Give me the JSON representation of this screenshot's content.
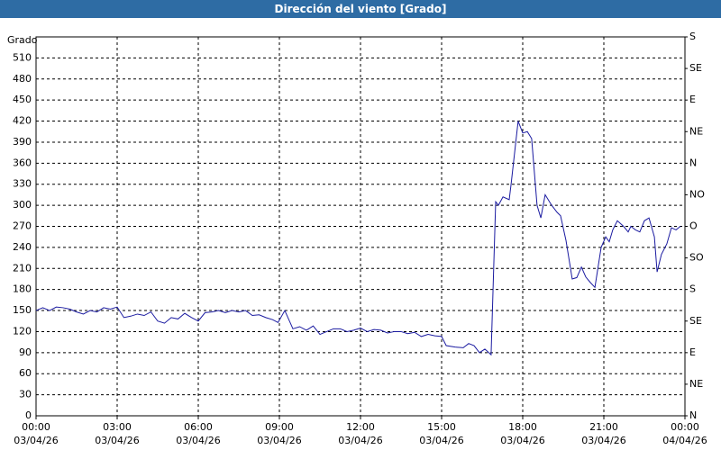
{
  "chart_data": {
    "type": "line",
    "title": "Dirección del viento [Grado]",
    "y_label": "Grado",
    "xlim": [
      0,
      24
    ],
    "xticks": [
      {
        "value": 0,
        "label": "00:00\n03/04/26"
      },
      {
        "value": 3,
        "label": "03:00\n03/04/26"
      },
      {
        "value": 6,
        "label": "06:00\n03/04/26"
      },
      {
        "value": 9,
        "label": "09:00\n03/04/26"
      },
      {
        "value": 12,
        "label": "12:00\n03/04/26"
      },
      {
        "value": 15,
        "label": "15:00\n03/04/26"
      },
      {
        "value": 18,
        "label": "18:00\n03/04/26"
      },
      {
        "value": 21,
        "label": "21:00\n03/04/26"
      },
      {
        "value": 24,
        "label": "00:00\n04/04/26"
      }
    ],
    "ylim": [
      0,
      540
    ],
    "yticks": [
      0,
      30,
      60,
      90,
      120,
      150,
      180,
      210,
      240,
      270,
      300,
      330,
      360,
      390,
      420,
      450,
      480,
      510
    ],
    "y2lim": [
      0,
      540
    ],
    "y2ticks": [
      {
        "value": 0,
        "label": "N"
      },
      {
        "value": 45,
        "label": "NE"
      },
      {
        "value": 90,
        "label": "E"
      },
      {
        "value": 135,
        "label": "SE"
      },
      {
        "value": 180,
        "label": "S"
      },
      {
        "value": 225,
        "label": "SO"
      },
      {
        "value": 270,
        "label": "O"
      },
      {
        "value": 315,
        "label": "NO"
      },
      {
        "value": 360,
        "label": "N"
      },
      {
        "value": 405,
        "label": "NE"
      },
      {
        "value": 450,
        "label": "E"
      },
      {
        "value": 495,
        "label": "SE"
      },
      {
        "value": 540,
        "label": "S"
      }
    ],
    "grid": true,
    "x": [
      0,
      0.25,
      0.5,
      0.75,
      1,
      1.25,
      1.5,
      1.75,
      2,
      2.25,
      2.5,
      2.75,
      3,
      3.25,
      3.5,
      3.75,
      4,
      4.25,
      4.5,
      4.75,
      5,
      5.25,
      5.5,
      5.75,
      6,
      6.25,
      6.5,
      6.75,
      7,
      7.25,
      7.5,
      7.75,
      8,
      8.25,
      8.5,
      8.75,
      8.95,
      9.2,
      9.5,
      9.75,
      10,
      10.25,
      10.5,
      10.75,
      11,
      11.25,
      11.5,
      11.75,
      12,
      12.25,
      12.5,
      12.75,
      13,
      13.25,
      13.5,
      13.75,
      14,
      14.25,
      14.5,
      14.75,
      15,
      15.17,
      15.5,
      15.8,
      16,
      16.2,
      16.4,
      16.6,
      16.83,
      17,
      17.1,
      17.27,
      17.5,
      17.57,
      17.83,
      18,
      18.17,
      18.33,
      18.53,
      18.67,
      18.83,
      19.07,
      19.27,
      19.4,
      19.6,
      19.83,
      20,
      20.17,
      20.33,
      20.5,
      20.67,
      20.9,
      21.07,
      21.2,
      21.33,
      21.5,
      21.73,
      21.9,
      22,
      22.17,
      22.33,
      22.5,
      22.67,
      22.87,
      22.97,
      23.13,
      23.33,
      23.5,
      23.67,
      23.83
    ],
    "series": [
      {
        "name": "Dirección del viento",
        "color": "#1a1aa0",
        "values": [
          150,
          154,
          150,
          155,
          154,
          152,
          148,
          145,
          150,
          148,
          154,
          152,
          155,
          140,
          142,
          145,
          143,
          148,
          135,
          132,
          140,
          138,
          146,
          140,
          135,
          147,
          148,
          150,
          147,
          150,
          148,
          150,
          143,
          144,
          140,
          137,
          133,
          150,
          124,
          127,
          122,
          128,
          116,
          120,
          124,
          124,
          120,
          122,
          125,
          120,
          123,
          122,
          118,
          120,
          120,
          117,
          119,
          113,
          116,
          114,
          113,
          100,
          98,
          97,
          103,
          100,
          90,
          95,
          87,
          305,
          300,
          312,
          308,
          330,
          420,
          403,
          405,
          395,
          300,
          282,
          315,
          300,
          290,
          285,
          250,
          195,
          197,
          212,
          198,
          190,
          183,
          240,
          255,
          248,
          265,
          278,
          270,
          262,
          270,
          265,
          262,
          278,
          282,
          255,
          205,
          230,
          245,
          268,
          265,
          270
        ]
      }
    ]
  }
}
